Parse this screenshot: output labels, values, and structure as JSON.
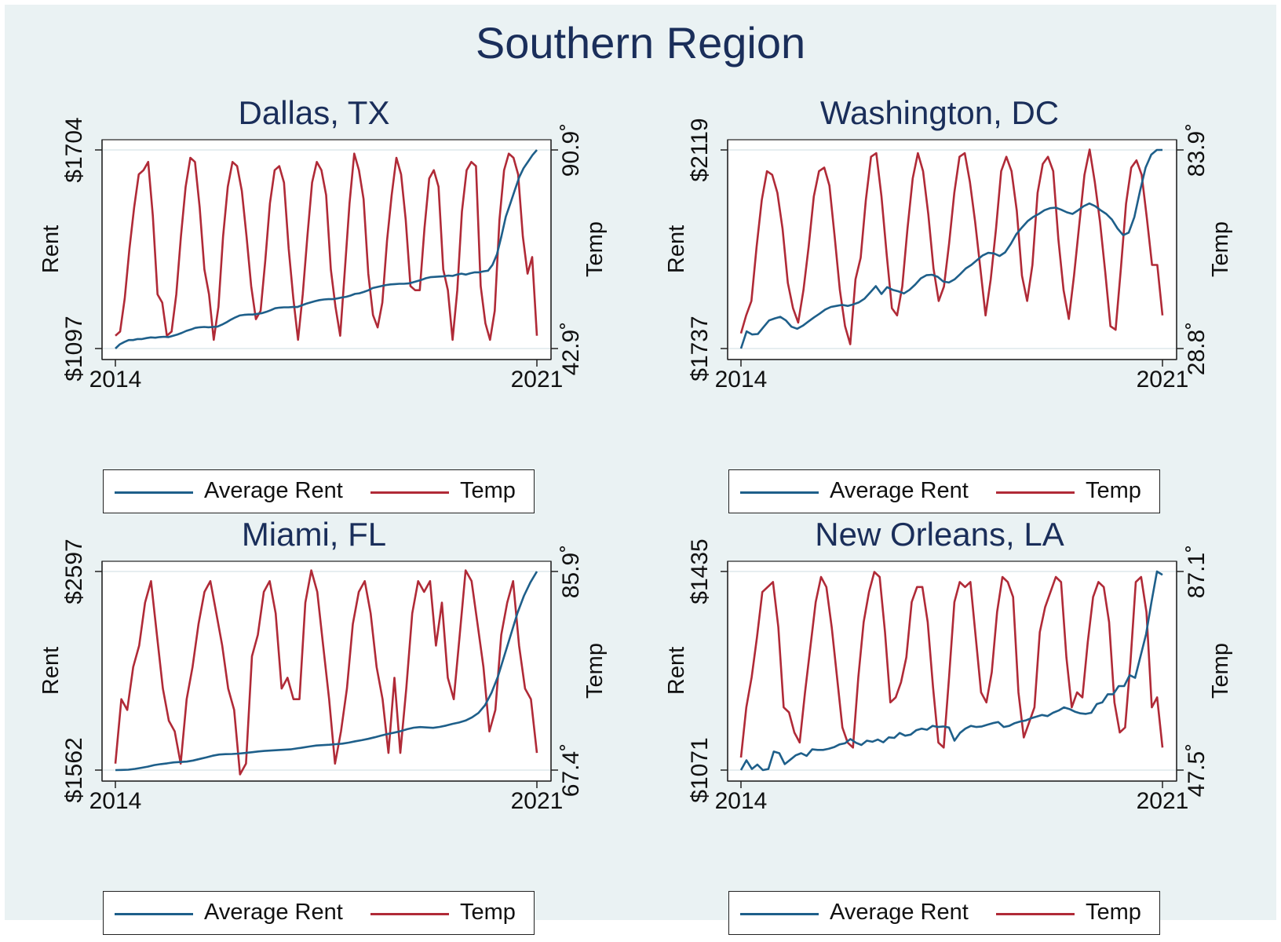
{
  "title": "Southern Region",
  "legend": {
    "rent_label": "Average Rent",
    "temp_label": "Temp"
  },
  "colors": {
    "rent": "#1e5f8a",
    "temp": "#b02a37",
    "title": "#1a2e5a",
    "background": "#eaf2f3"
  },
  "chart_data": [
    {
      "type": "line",
      "title": "Dallas, TX",
      "xlabel": "",
      "ylabel": "Rent",
      "y2label": "Temp",
      "xlim": [
        2014,
        2021
      ],
      "x_ticks": [
        "2014",
        "2021"
      ],
      "ylim": [
        1097,
        1704
      ],
      "y_ticks": [
        "$1097",
        "$1704"
      ],
      "y2lim": [
        42.9,
        90.9
      ],
      "y2_ticks": [
        "42.9˚",
        "90.9˚"
      ],
      "series": [
        {
          "name": "Average Rent",
          "axis": "left",
          "x_start": 2014,
          "x_step": 0.0833,
          "values": [
            1097,
            1110,
            1117,
            1123,
            1123,
            1126,
            1126,
            1129,
            1131,
            1130,
            1132,
            1133,
            1132,
            1136,
            1140,
            1145,
            1151,
            1155,
            1160,
            1162,
            1163,
            1162,
            1163,
            1164,
            1170,
            1177,
            1185,
            1192,
            1198,
            1200,
            1201,
            1201,
            1203,
            1205,
            1209,
            1214,
            1220,
            1222,
            1223,
            1223,
            1224,
            1224,
            1229,
            1234,
            1238,
            1242,
            1245,
            1247,
            1248,
            1248,
            1250,
            1253,
            1255,
            1259,
            1264,
            1266,
            1270,
            1275,
            1282,
            1285,
            1288,
            1291,
            1293,
            1294,
            1295,
            1295,
            1296,
            1299,
            1303,
            1307,
            1312,
            1315,
            1316,
            1317,
            1318,
            1320,
            1319,
            1323,
            1326,
            1323,
            1327,
            1330,
            1330,
            1333,
            1335,
            1353,
            1385,
            1440,
            1500,
            1540,
            1580,
            1620,
            1648,
            1668,
            1688,
            1704
          ]
        },
        {
          "name": "Temp",
          "axis": "right",
          "x_start": 2014,
          "x_step": 0.0833,
          "values": [
            46,
            47,
            55,
            67,
            77,
            85,
            86,
            88,
            75,
            56,
            54,
            46,
            47,
            56,
            70,
            82,
            89,
            88,
            77,
            62,
            56,
            45,
            53,
            70,
            82,
            88,
            87,
            81,
            70,
            58,
            50,
            52,
            64,
            78,
            86,
            87,
            83,
            67,
            55,
            45,
            56,
            70,
            83,
            88,
            86,
            80,
            62,
            53,
            46,
            62,
            78,
            90,
            86,
            79,
            61,
            51,
            48,
            54,
            69,
            80,
            89,
            85,
            74,
            58,
            57,
            57,
            72,
            84,
            86,
            82,
            62,
            57,
            45,
            57,
            76,
            86,
            88,
            87,
            58,
            49,
            45,
            52,
            74,
            86,
            90,
            89,
            85,
            70,
            61,
            65,
            46
          ]
        }
      ]
    },
    {
      "type": "line",
      "title": "Washington, DC",
      "xlabel": "",
      "ylabel": "Rent",
      "y2label": "Temp",
      "xlim": [
        2014,
        2021
      ],
      "x_ticks": [
        "2014",
        "2021"
      ],
      "ylim": [
        1737,
        2119
      ],
      "y_ticks": [
        "$1737",
        "$2119"
      ],
      "y2lim": [
        28.8,
        83.9
      ],
      "y2_ticks": [
        "28.8˚",
        "83.9˚"
      ],
      "series": [
        {
          "name": "Average Rent",
          "axis": "left",
          "x_start": 2014,
          "x_step": 0.0833,
          "values": [
            1737,
            1770,
            1764,
            1765,
            1778,
            1791,
            1795,
            1798,
            1791,
            1779,
            1775,
            1781,
            1789,
            1797,
            1804,
            1812,
            1817,
            1819,
            1821,
            1819,
            1822,
            1826,
            1833,
            1845,
            1857,
            1842,
            1855,
            1850,
            1847,
            1843,
            1850,
            1860,
            1872,
            1878,
            1879,
            1875,
            1866,
            1864,
            1870,
            1880,
            1891,
            1898,
            1907,
            1916,
            1921,
            1920,
            1915,
            1922,
            1938,
            1957,
            1970,
            1982,
            1990,
            1996,
            2003,
            2007,
            2008,
            2004,
            1999,
            1996,
            2003,
            2011,
            2016,
            2011,
            2003,
            1996,
            1985,
            1968,
            1955,
            1960,
            1990,
            2040,
            2085,
            2110,
            2119,
            2119
          ]
        },
        {
          "name": "Temp",
          "axis": "right",
          "x_start": 2014,
          "x_step": 0.0833,
          "values": [
            33,
            38,
            42,
            57,
            70,
            78,
            77,
            72,
            62,
            47,
            40,
            36,
            45,
            57,
            71,
            78,
            79,
            74,
            60,
            45,
            35,
            30,
            48,
            54,
            70,
            82,
            83,
            71,
            55,
            40,
            38,
            46,
            62,
            76,
            83,
            78,
            66,
            51,
            42,
            46,
            58,
            72,
            82,
            83,
            75,
            64,
            51,
            38,
            48,
            62,
            78,
            82,
            78,
            67,
            49,
            42,
            52,
            72,
            80,
            82,
            78,
            59,
            45,
            37,
            49,
            63,
            77,
            84,
            75,
            64,
            50,
            35,
            34,
            51,
            69,
            79,
            81,
            77,
            65,
            52,
            52,
            38
          ]
        }
      ]
    },
    {
      "type": "line",
      "title": "Miami, FL",
      "xlabel": "",
      "ylabel": "Rent",
      "y2label": "Temp",
      "xlim": [
        2014,
        2021
      ],
      "x_ticks": [
        "2014",
        "2021"
      ],
      "ylim": [
        1562,
        2597
      ],
      "y_ticks": [
        "$1562",
        "$2597"
      ],
      "y2lim": [
        67.4,
        85.9
      ],
      "y2_ticks": [
        "67.4˚",
        "85.9˚"
      ],
      "series": [
        {
          "name": "Average Rent",
          "axis": "left",
          "x_start": 2014,
          "x_step": 0.0833,
          "values": [
            1562,
            1563,
            1564,
            1568,
            1574,
            1580,
            1588,
            1593,
            1597,
            1602,
            1604,
            1606,
            1612,
            1620,
            1628,
            1637,
            1643,
            1645,
            1646,
            1648,
            1651,
            1655,
            1659,
            1662,
            1664,
            1666,
            1668,
            1670,
            1675,
            1680,
            1685,
            1690,
            1692,
            1694,
            1697,
            1700,
            1705,
            1712,
            1718,
            1725,
            1733,
            1742,
            1750,
            1757,
            1765,
            1775,
            1783,
            1786,
            1784,
            1782,
            1787,
            1794,
            1803,
            1810,
            1820,
            1837,
            1860,
            1900,
            1965,
            2050,
            2160,
            2270,
            2380,
            2470,
            2540,
            2597
          ]
        },
        {
          "name": "Temp",
          "axis": "right",
          "x_start": 2014,
          "x_step": 0.0833,
          "values": [
            68,
            74,
            73,
            77,
            79,
            83,
            85,
            80,
            75,
            72,
            71,
            68,
            74,
            77,
            81,
            84,
            85,
            82,
            79,
            75,
            73,
            67,
            68,
            78,
            80,
            84,
            85,
            82,
            75,
            76,
            74,
            74,
            83,
            86,
            84,
            79,
            74,
            68,
            71,
            75,
            81,
            84,
            85,
            82,
            77,
            74,
            69,
            76,
            69,
            75,
            82,
            85,
            84,
            85,
            79,
            83,
            76,
            74,
            80,
            86,
            85,
            81,
            77,
            71,
            73,
            80,
            83,
            85,
            79,
            75,
            74,
            69
          ]
        }
      ]
    },
    {
      "type": "line",
      "title": "New Orleans, LA",
      "xlabel": "",
      "ylabel": "Rent",
      "y2label": "Temp",
      "xlim": [
        2014,
        2021
      ],
      "x_ticks": [
        "2014",
        "2021"
      ],
      "ylim": [
        1071,
        1435
      ],
      "y_ticks": [
        "$1071",
        "$1435"
      ],
      "y2lim": [
        47.5,
        87.1
      ],
      "y2_ticks": [
        "47.5˚",
        "87.1˚"
      ],
      "series": [
        {
          "name": "Average Rent",
          "axis": "left",
          "x_start": 2014,
          "x_step": 0.0833,
          "values": [
            1071,
            1089,
            1073,
            1081,
            1071,
            1073,
            1105,
            1102,
            1082,
            1090,
            1098,
            1102,
            1097,
            1109,
            1108,
            1108,
            1110,
            1113,
            1118,
            1120,
            1128,
            1121,
            1117,
            1125,
            1123,
            1127,
            1122,
            1131,
            1130,
            1139,
            1134,
            1136,
            1144,
            1147,
            1145,
            1152,
            1150,
            1151,
            1149,
            1125,
            1139,
            1147,
            1152,
            1150,
            1151,
            1154,
            1157,
            1159,
            1150,
            1152,
            1157,
            1160,
            1162,
            1166,
            1169,
            1172,
            1170,
            1176,
            1180,
            1186,
            1183,
            1178,
            1175,
            1174,
            1176,
            1192,
            1195,
            1210,
            1210,
            1225,
            1225,
            1245,
            1240,
            1280,
            1320,
            1380,
            1435,
            1429
          ]
        },
        {
          "name": "Temp",
          "axis": "right",
          "x_start": 2014,
          "x_step": 0.0833,
          "values": [
            50,
            60,
            66,
            74,
            83,
            84,
            85,
            76,
            60,
            59,
            55,
            53,
            63,
            72,
            81,
            86,
            84,
            76,
            66,
            56,
            53,
            52,
            66,
            77,
            83,
            87,
            86,
            75,
            61,
            62,
            65,
            70,
            81,
            84,
            84,
            77,
            64,
            53,
            52,
            66,
            81,
            85,
            84,
            85,
            74,
            63,
            61,
            67,
            79,
            86,
            85,
            82,
            63,
            54,
            57,
            60,
            75,
            80,
            83,
            86,
            85,
            70,
            60,
            63,
            62,
            73,
            82,
            85,
            84,
            77,
            61,
            55,
            56,
            69,
            85,
            86,
            79,
            60,
            62,
            52
          ]
        }
      ]
    }
  ]
}
